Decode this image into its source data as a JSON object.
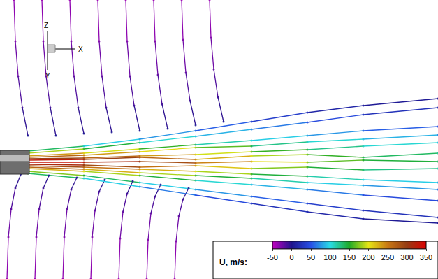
{
  "chart_data": {
    "type": "streamlines",
    "xlim": [
      0,
      627
    ],
    "ylim": [
      0,
      399
    ],
    "tick_labels": false,
    "grid": false,
    "axis_labels": {
      "z": "Z",
      "x": "X",
      "y": "Y"
    },
    "nozzle": {
      "x": [
        0,
        42
      ],
      "y": [
        150,
        184
      ]
    },
    "colorbar": {
      "title": "U, m/s:",
      "range": [
        -50,
        350
      ],
      "ticks": [
        -50,
        0,
        50,
        100,
        150,
        200,
        250,
        300,
        350
      ]
    },
    "streamlines": [
      {
        "x": [
          40,
          120,
          200,
          280,
          360,
          440,
          520,
          627
        ],
        "y": [
          167,
          167,
          168,
          166,
          168,
          167,
          170,
          168
        ],
        "u": [
          340,
          320,
          300,
          260,
          220,
          180,
          150,
          130
        ]
      },
      {
        "x": [
          40,
          120,
          200,
          280,
          360,
          440,
          520,
          627
        ],
        "y": [
          172,
          173,
          176,
          178,
          182,
          185,
          190,
          195
        ],
        "u": [
          300,
          280,
          250,
          210,
          170,
          140,
          110,
          90
        ]
      },
      {
        "x": [
          40,
          120,
          200,
          280,
          360,
          440,
          520,
          627
        ],
        "y": [
          162,
          160,
          157,
          154,
          150,
          147,
          142,
          138
        ],
        "u": [
          300,
          270,
          240,
          200,
          160,
          130,
          100,
          80
        ]
      },
      {
        "x": [
          40,
          120,
          200,
          280,
          360,
          440,
          520,
          627
        ],
        "y": [
          176,
          180,
          186,
          192,
          198,
          205,
          212,
          218
        ],
        "u": [
          250,
          210,
          170,
          130,
          100,
          80,
          60,
          50
        ]
      },
      {
        "x": [
          40,
          120,
          200,
          280,
          360,
          440,
          520,
          627
        ],
        "y": [
          158,
          154,
          148,
          141,
          135,
          128,
          120,
          112
        ],
        "u": [
          250,
          200,
          160,
          120,
          90,
          70,
          50,
          40
        ]
      },
      {
        "x": [
          40,
          120,
          200,
          280,
          360,
          440,
          520,
          627
        ],
        "y": [
          180,
          186,
          195,
          204,
          214,
          224,
          235,
          245
        ],
        "u": [
          200,
          160,
          120,
          90,
          70,
          50,
          30,
          20
        ]
      },
      {
        "x": [
          40,
          120,
          200,
          280,
          360,
          440,
          520,
          627
        ],
        "y": [
          154,
          148,
          138,
          128,
          118,
          108,
          98,
          88
        ],
        "u": [
          200,
          150,
          110,
          80,
          60,
          40,
          25,
          15
        ]
      },
      {
        "x": [
          40,
          120,
          200,
          280,
          360,
          440,
          520,
          627
        ],
        "y": [
          170,
          171,
          174,
          171,
          176,
          178,
          174,
          180
        ],
        "u": [
          330,
          310,
          280,
          240,
          200,
          170,
          140,
          120
        ]
      },
      {
        "x": [
          40,
          120,
          200,
          280,
          360,
          440,
          520,
          627
        ],
        "y": [
          164,
          163,
          160,
          162,
          158,
          160,
          156,
          158
        ],
        "u": [
          330,
          300,
          270,
          230,
          190,
          160,
          130,
          110
        ]
      },
      {
        "x": [
          40,
          120,
          200,
          280,
          360,
          440,
          520,
          627
        ],
        "y": [
          183,
          190,
          200,
          212,
          225,
          238,
          248,
          258
        ],
        "u": [
          150,
          110,
          80,
          60,
          40,
          25,
          10,
          5
        ]
      },
      {
        "x": [
          40,
          120,
          200,
          280,
          360,
          440,
          520,
          627
        ],
        "y": [
          151,
          144,
          132,
          120,
          108,
          96,
          86,
          80
        ],
        "u": [
          150,
          110,
          80,
          55,
          35,
          20,
          10,
          5
        ]
      },
      {
        "x": [
          40,
          120,
          200,
          280,
          360,
          440,
          520,
          627
        ],
        "y": [
          174,
          177,
          182,
          188,
          190,
          196,
          200,
          206
        ],
        "u": [
          280,
          250,
          220,
          180,
          140,
          110,
          90,
          70
        ]
      },
      {
        "x": [
          40,
          120,
          200,
          280,
          360,
          440,
          520,
          627
        ],
        "y": [
          160,
          157,
          152,
          148,
          144,
          138,
          134,
          128
        ],
        "u": [
          280,
          240,
          200,
          160,
          130,
          100,
          80,
          60
        ]
      },
      {
        "x": [
          20,
          22,
          26,
          32,
          40
        ],
        "y": [
          399,
          340,
          290,
          245,
          205
        ],
        "u": [
          -40,
          -30,
          -20,
          -10,
          5
        ]
      },
      {
        "x": [
          60,
          62,
          66,
          72,
          80
        ],
        "y": [
          399,
          340,
          290,
          245,
          205
        ],
        "u": [
          -40,
          -30,
          -20,
          -10,
          5
        ]
      },
      {
        "x": [
          100,
          102,
          106,
          112,
          120
        ],
        "y": [
          399,
          340,
          290,
          245,
          208
        ],
        "u": [
          -40,
          -30,
          -20,
          -10,
          5
        ]
      },
      {
        "x": [
          140,
          142,
          146,
          152,
          160
        ],
        "y": [
          399,
          340,
          290,
          245,
          210
        ],
        "u": [
          -40,
          -30,
          -20,
          -10,
          5
        ]
      },
      {
        "x": [
          180,
          182,
          186,
          192,
          200
        ],
        "y": [
          399,
          340,
          290,
          248,
          212
        ],
        "u": [
          -40,
          -30,
          -20,
          -10,
          5
        ]
      },
      {
        "x": [
          220,
          222,
          226,
          232,
          240
        ],
        "y": [
          399,
          340,
          292,
          250,
          215
        ],
        "u": [
          -40,
          -30,
          -20,
          -10,
          5
        ]
      },
      {
        "x": [
          260,
          262,
          266,
          272,
          280
        ],
        "y": [
          399,
          342,
          295,
          255,
          220
        ],
        "u": [
          -40,
          -30,
          -20,
          -10,
          5
        ]
      },
      {
        "x": [
          300,
          302,
          306,
          312,
          320
        ],
        "y": [
          399,
          345,
          300,
          260,
          225
        ],
        "u": [
          -40,
          -30,
          -20,
          -10,
          5
        ]
      },
      {
        "x": [
          10,
          12,
          16,
          22,
          30
        ],
        "y": [
          0,
          60,
          100,
          130,
          150
        ],
        "u": [
          -40,
          -30,
          -20,
          -10,
          5
        ]
      },
      {
        "x": [
          50,
          52,
          56,
          62,
          70
        ],
        "y": [
          0,
          60,
          100,
          130,
          148
        ],
        "u": [
          -40,
          -30,
          -20,
          -10,
          5
        ]
      },
      {
        "x": [
          90,
          92,
          96,
          102,
          110
        ],
        "y": [
          0,
          60,
          100,
          128,
          145
        ],
        "u": [
          -40,
          -30,
          -20,
          -10,
          5
        ]
      },
      {
        "x": [
          130,
          132,
          136,
          142,
          150
        ],
        "y": [
          0,
          60,
          98,
          125,
          142
        ],
        "u": [
          -40,
          -30,
          -20,
          -10,
          5
        ]
      },
      {
        "x": [
          170,
          172,
          176,
          182,
          190
        ],
        "y": [
          0,
          58,
          96,
          122,
          140
        ],
        "u": [
          -40,
          -30,
          -20,
          -10,
          5
        ]
      },
      {
        "x": [
          210,
          212,
          216,
          222,
          230
        ],
        "y": [
          0,
          56,
          94,
          118,
          135
        ],
        "u": [
          -40,
          -30,
          -20,
          -10,
          5
        ]
      },
      {
        "x": [
          250,
          252,
          256,
          262,
          270
        ],
        "y": [
          0,
          54,
          90,
          114,
          130
        ],
        "u": [
          -40,
          -30,
          -20,
          -10,
          5
        ]
      }
    ]
  }
}
